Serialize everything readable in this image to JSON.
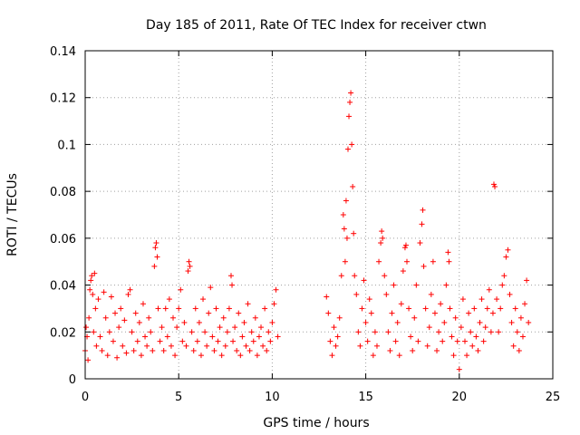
{
  "chart_data": {
    "type": "scatter",
    "title": "Day 185 of 2011, Rate Of TEC Index for receiver ctwn",
    "xlabel": "GPS time / hours",
    "ylabel": "ROTI / TECUs",
    "xlim": [
      0,
      25
    ],
    "ylim": [
      0,
      0.14
    ],
    "x_ticks": [
      "0",
      "5",
      "10",
      "15",
      "20",
      "25"
    ],
    "y_ticks": [
      "0",
      "0.02",
      "0.04",
      "0.06",
      "0.08",
      "0.1",
      "0.12",
      "0.14"
    ],
    "grid": true,
    "legend": "none",
    "marker": "plus",
    "color": "#ff0000",
    "series": [
      {
        "points": [
          [
            0.0,
            0.012
          ],
          [
            0.05,
            0.022
          ],
          [
            0.1,
            0.018
          ],
          [
            0.15,
            0.008
          ],
          [
            0.2,
            0.026
          ],
          [
            0.25,
            0.038
          ],
          [
            0.3,
            0.042
          ],
          [
            0.35,
            0.044
          ],
          [
            0.4,
            0.036
          ],
          [
            0.45,
            0.02
          ],
          [
            0.5,
            0.045
          ],
          [
            0.55,
            0.03
          ],
          [
            0.6,
            0.014
          ],
          [
            0.7,
            0.034
          ],
          [
            0.8,
            0.018
          ],
          [
            0.9,
            0.012
          ],
          [
            1.0,
            0.037
          ],
          [
            1.1,
            0.026
          ],
          [
            1.2,
            0.01
          ],
          [
            1.3,
            0.02
          ],
          [
            1.4,
            0.035
          ],
          [
            1.5,
            0.016
          ],
          [
            1.6,
            0.028
          ],
          [
            1.7,
            0.009
          ],
          [
            1.8,
            0.022
          ],
          [
            1.9,
            0.03
          ],
          [
            2.0,
            0.014
          ],
          [
            2.1,
            0.025
          ],
          [
            2.2,
            0.011
          ],
          [
            2.3,
            0.036
          ],
          [
            2.4,
            0.038
          ],
          [
            2.5,
            0.02
          ],
          [
            2.6,
            0.012
          ],
          [
            2.7,
            0.028
          ],
          [
            2.8,
            0.016
          ],
          [
            2.9,
            0.024
          ],
          [
            3.0,
            0.01
          ],
          [
            3.1,
            0.032
          ],
          [
            3.2,
            0.018
          ],
          [
            3.3,
            0.014
          ],
          [
            3.4,
            0.026
          ],
          [
            3.5,
            0.02
          ],
          [
            3.6,
            0.012
          ],
          [
            3.7,
            0.048
          ],
          [
            3.75,
            0.056
          ],
          [
            3.8,
            0.058
          ],
          [
            3.85,
            0.052
          ],
          [
            3.9,
            0.03
          ],
          [
            4.0,
            0.016
          ],
          [
            4.1,
            0.022
          ],
          [
            4.2,
            0.012
          ],
          [
            4.3,
            0.03
          ],
          [
            4.4,
            0.018
          ],
          [
            4.5,
            0.034
          ],
          [
            4.6,
            0.014
          ],
          [
            4.7,
            0.026
          ],
          [
            4.8,
            0.01
          ],
          [
            4.9,
            0.022
          ],
          [
            5.0,
            0.03
          ],
          [
            5.1,
            0.038
          ],
          [
            5.2,
            0.016
          ],
          [
            5.3,
            0.024
          ],
          [
            5.4,
            0.014
          ],
          [
            5.5,
            0.046
          ],
          [
            5.55,
            0.05
          ],
          [
            5.6,
            0.048
          ],
          [
            5.7,
            0.02
          ],
          [
            5.8,
            0.012
          ],
          [
            5.9,
            0.03
          ],
          [
            6.0,
            0.016
          ],
          [
            6.1,
            0.024
          ],
          [
            6.2,
            0.01
          ],
          [
            6.3,
            0.034
          ],
          [
            6.4,
            0.02
          ],
          [
            6.5,
            0.014
          ],
          [
            6.6,
            0.028
          ],
          [
            6.7,
            0.039
          ],
          [
            6.8,
            0.018
          ],
          [
            6.9,
            0.012
          ],
          [
            7.0,
            0.03
          ],
          [
            7.1,
            0.016
          ],
          [
            7.2,
            0.022
          ],
          [
            7.3,
            0.01
          ],
          [
            7.4,
            0.026
          ],
          [
            7.5,
            0.014
          ],
          [
            7.6,
            0.02
          ],
          [
            7.7,
            0.03
          ],
          [
            7.8,
            0.044
          ],
          [
            7.85,
            0.04
          ],
          [
            7.9,
            0.016
          ],
          [
            8.0,
            0.022
          ],
          [
            8.1,
            0.012
          ],
          [
            8.2,
            0.028
          ],
          [
            8.3,
            0.01
          ],
          [
            8.4,
            0.018
          ],
          [
            8.5,
            0.024
          ],
          [
            8.6,
            0.014
          ],
          [
            8.7,
            0.032
          ],
          [
            8.8,
            0.012
          ],
          [
            8.9,
            0.02
          ],
          [
            9.0,
            0.016
          ],
          [
            9.1,
            0.026
          ],
          [
            9.2,
            0.01
          ],
          [
            9.3,
            0.018
          ],
          [
            9.4,
            0.022
          ],
          [
            9.5,
            0.014
          ],
          [
            9.6,
            0.03
          ],
          [
            9.7,
            0.012
          ],
          [
            9.8,
            0.02
          ],
          [
            9.9,
            0.016
          ],
          [
            10.0,
            0.024
          ],
          [
            10.1,
            0.032
          ],
          [
            10.2,
            0.038
          ],
          [
            10.3,
            0.018
          ],
          [
            12.9,
            0.035
          ],
          [
            13.0,
            0.028
          ],
          [
            13.1,
            0.016
          ],
          [
            13.2,
            0.01
          ],
          [
            13.3,
            0.022
          ],
          [
            13.4,
            0.014
          ],
          [
            13.5,
            0.018
          ],
          [
            13.6,
            0.026
          ],
          [
            13.7,
            0.044
          ],
          [
            13.8,
            0.07
          ],
          [
            13.85,
            0.064
          ],
          [
            13.9,
            0.05
          ],
          [
            13.95,
            0.076
          ],
          [
            14.0,
            0.06
          ],
          [
            14.05,
            0.098
          ],
          [
            14.1,
            0.112
          ],
          [
            14.15,
            0.118
          ],
          [
            14.2,
            0.122
          ],
          [
            14.25,
            0.1
          ],
          [
            14.3,
            0.082
          ],
          [
            14.35,
            0.062
          ],
          [
            14.4,
            0.044
          ],
          [
            14.5,
            0.036
          ],
          [
            14.6,
            0.02
          ],
          [
            14.7,
            0.014
          ],
          [
            14.8,
            0.03
          ],
          [
            14.9,
            0.042
          ],
          [
            15.0,
            0.024
          ],
          [
            15.1,
            0.016
          ],
          [
            15.2,
            0.034
          ],
          [
            15.3,
            0.028
          ],
          [
            15.4,
            0.01
          ],
          [
            15.5,
            0.02
          ],
          [
            15.6,
            0.014
          ],
          [
            15.7,
            0.05
          ],
          [
            15.8,
            0.058
          ],
          [
            15.85,
            0.063
          ],
          [
            15.9,
            0.06
          ],
          [
            16.0,
            0.044
          ],
          [
            16.1,
            0.036
          ],
          [
            16.2,
            0.02
          ],
          [
            16.3,
            0.012
          ],
          [
            16.4,
            0.028
          ],
          [
            16.5,
            0.04
          ],
          [
            16.6,
            0.016
          ],
          [
            16.7,
            0.024
          ],
          [
            16.8,
            0.01
          ],
          [
            16.9,
            0.032
          ],
          [
            17.0,
            0.046
          ],
          [
            17.1,
            0.056
          ],
          [
            17.15,
            0.057
          ],
          [
            17.2,
            0.05
          ],
          [
            17.3,
            0.03
          ],
          [
            17.4,
            0.018
          ],
          [
            17.5,
            0.012
          ],
          [
            17.6,
            0.026
          ],
          [
            17.7,
            0.04
          ],
          [
            17.8,
            0.016
          ],
          [
            17.9,
            0.058
          ],
          [
            18.0,
            0.066
          ],
          [
            18.05,
            0.072
          ],
          [
            18.1,
            0.048
          ],
          [
            18.2,
            0.03
          ],
          [
            18.3,
            0.014
          ],
          [
            18.4,
            0.022
          ],
          [
            18.5,
            0.036
          ],
          [
            18.6,
            0.05
          ],
          [
            18.7,
            0.028
          ],
          [
            18.8,
            0.012
          ],
          [
            18.9,
            0.02
          ],
          [
            19.0,
            0.032
          ],
          [
            19.1,
            0.016
          ],
          [
            19.2,
            0.024
          ],
          [
            19.3,
            0.04
          ],
          [
            19.4,
            0.054
          ],
          [
            19.45,
            0.05
          ],
          [
            19.5,
            0.03
          ],
          [
            19.6,
            0.018
          ],
          [
            19.7,
            0.01
          ],
          [
            19.8,
            0.026
          ],
          [
            19.9,
            0.016
          ],
          [
            20.0,
            0.004
          ],
          [
            20.1,
            0.022
          ],
          [
            20.2,
            0.034
          ],
          [
            20.3,
            0.016
          ],
          [
            20.4,
            0.01
          ],
          [
            20.5,
            0.028
          ],
          [
            20.6,
            0.02
          ],
          [
            20.7,
            0.014
          ],
          [
            20.8,
            0.03
          ],
          [
            20.9,
            0.018
          ],
          [
            21.0,
            0.012
          ],
          [
            21.1,
            0.024
          ],
          [
            21.2,
            0.034
          ],
          [
            21.3,
            0.016
          ],
          [
            21.4,
            0.022
          ],
          [
            21.5,
            0.03
          ],
          [
            21.6,
            0.038
          ],
          [
            21.7,
            0.02
          ],
          [
            21.8,
            0.028
          ],
          [
            21.85,
            0.083
          ],
          [
            21.9,
            0.082
          ],
          [
            22.0,
            0.034
          ],
          [
            22.1,
            0.02
          ],
          [
            22.2,
            0.03
          ],
          [
            22.3,
            0.04
          ],
          [
            22.4,
            0.044
          ],
          [
            22.5,
            0.052
          ],
          [
            22.6,
            0.055
          ],
          [
            22.7,
            0.036
          ],
          [
            22.8,
            0.024
          ],
          [
            22.9,
            0.014
          ],
          [
            23.0,
            0.03
          ],
          [
            23.1,
            0.02
          ],
          [
            23.2,
            0.012
          ],
          [
            23.3,
            0.026
          ],
          [
            23.4,
            0.018
          ],
          [
            23.5,
            0.032
          ],
          [
            23.6,
            0.042
          ],
          [
            23.7,
            0.024
          ]
        ]
      }
    ]
  }
}
